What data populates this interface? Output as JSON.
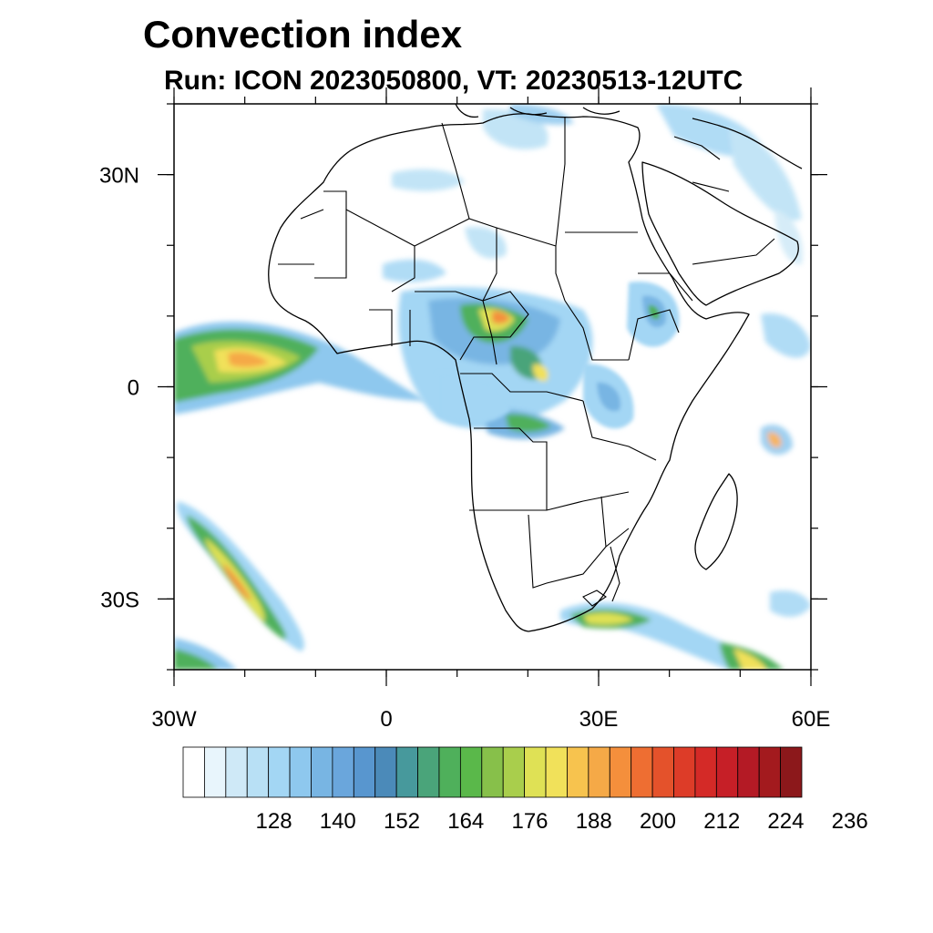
{
  "header": {
    "title": "Convection index",
    "subtitle": "Run: ICON 2023050800,  VT: 20230513-12UTC"
  },
  "map": {
    "projection": "cylindrical equidistant",
    "lon_range": [
      -30,
      60
    ],
    "lat_range": [
      -40,
      40
    ],
    "region": "Africa",
    "lon_ticks": [
      {
        "value": -30,
        "label": "30W"
      },
      {
        "value": 0,
        "label": "0"
      },
      {
        "value": 30,
        "label": "30E"
      },
      {
        "value": 60,
        "label": "60E"
      }
    ],
    "lat_ticks": [
      {
        "value": 30,
        "label": "30N"
      },
      {
        "value": 0,
        "label": "0"
      },
      {
        "value": -30,
        "label": "30S"
      }
    ]
  },
  "colorbar": {
    "labels": [
      "128",
      "140",
      "152",
      "164",
      "176",
      "188",
      "200",
      "212",
      "224",
      "236"
    ],
    "colors": [
      "#ffffff",
      "#e8f5fc",
      "#cfe9f7",
      "#b8e0f5",
      "#a3d6f4",
      "#8ec8ee",
      "#78b5e3",
      "#6aa6dc",
      "#5896cf",
      "#4b8ab9",
      "#47999c",
      "#4aa47a",
      "#4fb05b",
      "#5ab84a",
      "#87c04a",
      "#a9ce4c",
      "#dfe155",
      "#f1e15a",
      "#f7c34e",
      "#f5a947",
      "#f48f3c",
      "#ee6e32",
      "#e4522b",
      "#dd3c28",
      "#d42a27",
      "#c61f27",
      "#b41a25",
      "#a31a1e",
      "#8c181b"
    ]
  }
}
